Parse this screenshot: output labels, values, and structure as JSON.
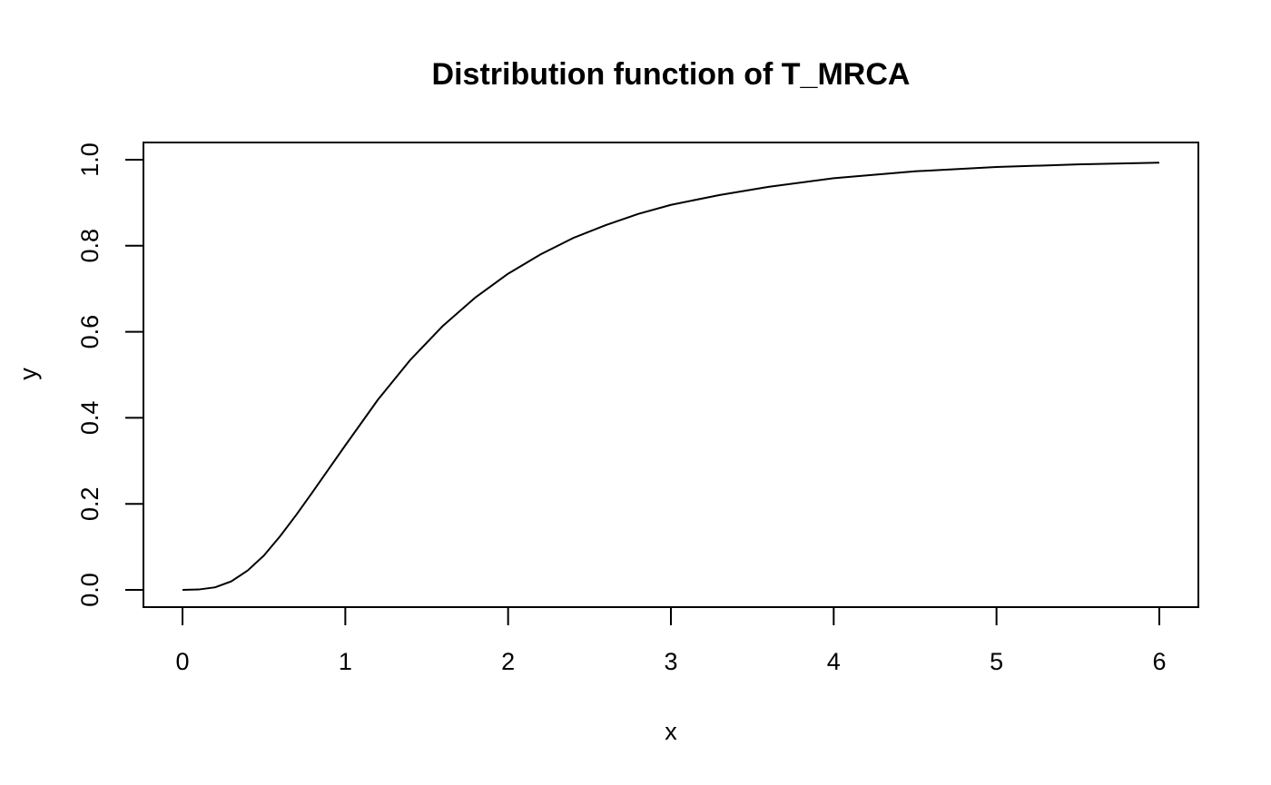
{
  "chart_data": {
    "type": "line",
    "title": "Distribution function of T_MRCA",
    "xlabel": "x",
    "ylabel": "y",
    "xlim": [
      -0.24,
      6.24
    ],
    "ylim": [
      -0.04,
      1.04
    ],
    "x_ticks": [
      0,
      1,
      2,
      3,
      4,
      5,
      6
    ],
    "x_tick_labels": [
      "0",
      "1",
      "2",
      "3",
      "4",
      "5",
      "6"
    ],
    "y_ticks": [
      0,
      0.2,
      0.4,
      0.6,
      0.8,
      1.0
    ],
    "y_tick_labels": [
      "0.0",
      "0.2",
      "0.4",
      "0.6",
      "0.8",
      "1.0"
    ],
    "grid": false,
    "series": [
      {
        "color": "#000000",
        "x": [
          0,
          0.1,
          0.2,
          0.3,
          0.4,
          0.5,
          0.6,
          0.7,
          0.8,
          0.9,
          1.0,
          1.2,
          1.4,
          1.6,
          1.8,
          2.0,
          2.2,
          2.4,
          2.6,
          2.8,
          3.0,
          3.3,
          3.6,
          4.0,
          4.5,
          5.0,
          5.5,
          6.0
        ],
        "y": [
          0.0,
          0.001,
          0.006,
          0.02,
          0.045,
          0.08,
          0.125,
          0.175,
          0.228,
          0.282,
          0.336,
          0.442,
          0.535,
          0.614,
          0.68,
          0.735,
          0.78,
          0.818,
          0.848,
          0.874,
          0.895,
          0.918,
          0.937,
          0.957,
          0.973,
          0.983,
          0.989,
          0.993
        ]
      }
    ]
  }
}
